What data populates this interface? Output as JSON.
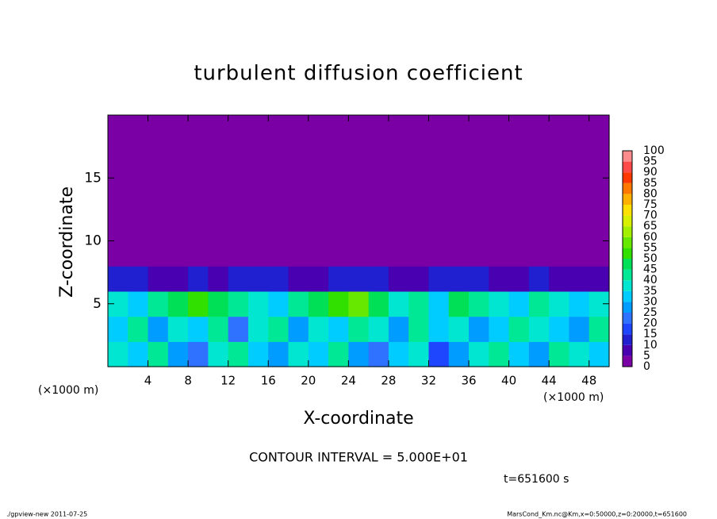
{
  "chart_data": {
    "type": "heatmap",
    "title": "turbulent diffusion coefficient",
    "x_label": "X-coordinate",
    "y_label": "Z-coordinate",
    "x_unit_labels": [
      "(×1000 m)",
      "(×1000 m)"
    ],
    "contour_interval": "CONTOUR INTERVAL = 5.000E+01",
    "time_label": "t=651600 s",
    "footer_left": "./gpview-new   2011-07-25",
    "footer_right": "MarsCond_Km.nc@Km,x=0:50000,z=0:20000,t=651600",
    "xlim": [
      0,
      50
    ],
    "xticks": [
      4,
      8,
      12,
      16,
      20,
      24,
      28,
      32,
      36,
      40,
      44,
      48
    ],
    "ylim": [
      0,
      20
    ],
    "yticks": [
      5,
      10,
      15
    ],
    "levels": [
      0,
      5,
      10,
      15,
      20,
      25,
      30,
      35,
      40,
      45,
      50,
      55,
      60,
      65,
      70,
      75,
      80,
      85,
      90,
      95,
      100
    ],
    "colors": [
      "#7a00a6",
      "#4800b0",
      "#2020d0",
      "#1e46ff",
      "#2f72ff",
      "#009cff",
      "#00ccff",
      "#00e6d0",
      "#00e896",
      "#00e056",
      "#32e000",
      "#66e800",
      "#a2f000",
      "#d6f000",
      "#ffe000",
      "#ffb000",
      "#ff7800",
      "#ff3800",
      "#ff4a4a",
      "#ff8c8c"
    ],
    "z": [
      [
        35,
        30,
        40,
        25,
        20,
        35,
        40,
        30,
        25,
        35,
        30,
        40,
        25,
        20,
        30,
        35,
        15,
        25,
        35,
        40,
        30,
        25,
        40,
        35,
        30
      ],
      [
        30,
        40,
        25,
        35,
        30,
        40,
        20,
        35,
        40,
        25,
        35,
        30,
        40,
        35,
        25,
        40,
        30,
        35,
        25,
        30,
        40,
        35,
        30,
        25,
        40
      ],
      [
        35,
        30,
        40,
        45,
        50,
        45,
        40,
        35,
        30,
        40,
        45,
        50,
        55,
        45,
        35,
        40,
        30,
        45,
        40,
        35,
        30,
        40,
        35,
        30,
        35
      ],
      [
        10,
        10,
        5,
        5,
        10,
        5,
        10,
        10,
        10,
        5,
        5,
        10,
        10,
        10,
        5,
        5,
        10,
        10,
        10,
        5,
        5,
        10,
        5,
        5,
        5
      ],
      [
        0,
        0,
        0,
        0,
        0,
        0,
        0,
        0,
        0,
        0,
        0,
        0,
        0,
        0,
        0,
        0,
        0,
        0,
        0,
        0,
        0,
        0,
        0,
        0,
        0
      ],
      [
        0,
        0,
        0,
        0,
        0,
        0,
        0,
        0,
        0,
        0,
        0,
        0,
        0,
        0,
        0,
        0,
        0,
        0,
        0,
        0,
        0,
        0,
        0,
        0,
        0
      ],
      [
        0,
        0,
        0,
        0,
        0,
        0,
        0,
        0,
        0,
        0,
        0,
        0,
        0,
        0,
        0,
        0,
        0,
        0,
        0,
        0,
        0,
        0,
        0,
        0,
        0
      ],
      [
        0,
        0,
        0,
        0,
        0,
        0,
        0,
        0,
        0,
        0,
        0,
        0,
        0,
        0,
        0,
        0,
        0,
        0,
        0,
        0,
        0,
        0,
        0,
        0,
        0
      ],
      [
        0,
        0,
        0,
        0,
        0,
        0,
        0,
        0,
        0,
        0,
        0,
        0,
        0,
        0,
        0,
        0,
        0,
        0,
        0,
        0,
        0,
        0,
        0,
        0,
        0
      ],
      [
        0,
        0,
        0,
        0,
        0,
        0,
        0,
        0,
        0,
        0,
        0,
        0,
        0,
        0,
        0,
        0,
        0,
        0,
        0,
        0,
        0,
        0,
        0,
        0,
        0
      ]
    ]
  }
}
